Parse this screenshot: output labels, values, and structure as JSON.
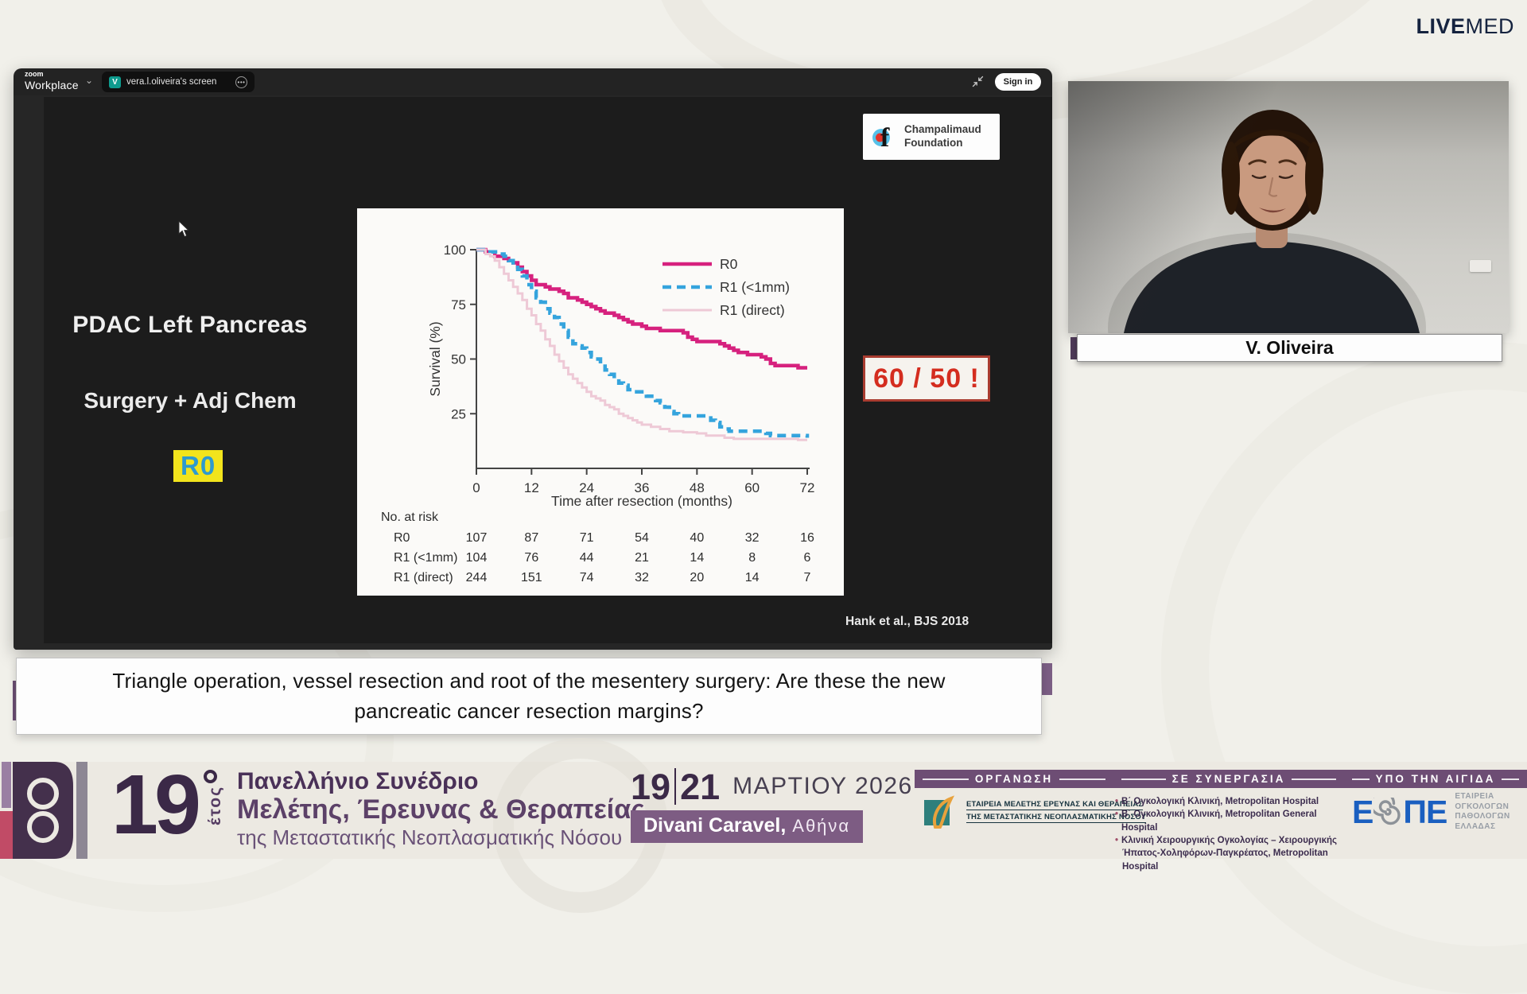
{
  "brand": {
    "live": "LIVE",
    "med": "MED"
  },
  "zoom_window": {
    "app_name_top": "zoom",
    "app_name_bottom": "Workplace",
    "tab_avatar": "V",
    "tab_title": "vera.l.oliveira's screen",
    "sign_in": "Sign in"
  },
  "slide": {
    "heading": "PDAC Left Pancreas",
    "subheading": "Surgery + Adj Chem",
    "highlight_label": "R0",
    "annotation": "60 / 50 !",
    "citation": "Hank et al., BJS 2018",
    "foundation_line1": "Champalimaud",
    "foundation_line2": "Foundation",
    "colors": {
      "highlight_bg": "#f2e41c",
      "highlight_text": "#2e9ace",
      "annotation_text": "#d42d1f"
    }
  },
  "chart_data": {
    "type": "line",
    "subtype": "kaplan-meier-step",
    "title": "",
    "xlabel": "Time after resection (months)",
    "ylabel": "Survival (%)",
    "xlim": [
      0,
      72
    ],
    "ylim": [
      0,
      100
    ],
    "x_ticks": [
      0,
      12,
      24,
      36,
      48,
      60,
      72
    ],
    "y_ticks": [
      100,
      75,
      50,
      25
    ],
    "grid": false,
    "legend_position": "top-right",
    "series": [
      {
        "name": "R0",
        "color": "#d6217e",
        "line": "solid",
        "width": 4.5,
        "points": [
          [
            0,
            100
          ],
          [
            2,
            99
          ],
          [
            4,
            97
          ],
          [
            6,
            96
          ],
          [
            7,
            95
          ],
          [
            8,
            94
          ],
          [
            9,
            92
          ],
          [
            10,
            90
          ],
          [
            11,
            88
          ],
          [
            12,
            86
          ],
          [
            13,
            84
          ],
          [
            15,
            83
          ],
          [
            16,
            82
          ],
          [
            18,
            81
          ],
          [
            19,
            80
          ],
          [
            20,
            78
          ],
          [
            22,
            77
          ],
          [
            23,
            76
          ],
          [
            24,
            75
          ],
          [
            25,
            74
          ],
          [
            26,
            73
          ],
          [
            27,
            72
          ],
          [
            28,
            71
          ],
          [
            30,
            70
          ],
          [
            31,
            69
          ],
          [
            32,
            68
          ],
          [
            33,
            67
          ],
          [
            34,
            66
          ],
          [
            36,
            65
          ],
          [
            37,
            64
          ],
          [
            40,
            63
          ],
          [
            44,
            63
          ],
          [
            45,
            62
          ],
          [
            46,
            60
          ],
          [
            47,
            59
          ],
          [
            48,
            58
          ],
          [
            53,
            57
          ],
          [
            54,
            56
          ],
          [
            55,
            55
          ],
          [
            56,
            54
          ],
          [
            57,
            53
          ],
          [
            59,
            52
          ],
          [
            62,
            51
          ],
          [
            63,
            50
          ],
          [
            64,
            48
          ],
          [
            65,
            47
          ],
          [
            68,
            47
          ],
          [
            70,
            46
          ],
          [
            72,
            46
          ]
        ]
      },
      {
        "name": "R1 (<1mm)",
        "color": "#35a4dd",
        "line": "dashed",
        "width": 4.5,
        "points": [
          [
            0,
            100
          ],
          [
            3,
            99
          ],
          [
            5,
            98
          ],
          [
            6,
            97
          ],
          [
            7,
            95
          ],
          [
            8,
            93
          ],
          [
            9,
            91
          ],
          [
            10,
            88
          ],
          [
            11,
            84
          ],
          [
            12,
            81
          ],
          [
            13,
            78
          ],
          [
            14,
            76
          ],
          [
            15,
            73
          ],
          [
            16,
            71
          ],
          [
            17,
            69
          ],
          [
            18,
            66
          ],
          [
            19,
            63
          ],
          [
            20,
            60
          ],
          [
            21,
            57
          ],
          [
            22,
            56
          ],
          [
            23,
            55
          ],
          [
            24,
            53
          ],
          [
            25,
            51
          ],
          [
            26,
            50
          ],
          [
            27,
            48
          ],
          [
            28,
            45
          ],
          [
            29,
            43
          ],
          [
            30,
            41
          ],
          [
            31,
            39
          ],
          [
            32,
            38
          ],
          [
            33,
            36
          ],
          [
            34,
            35
          ],
          [
            36,
            34
          ],
          [
            37,
            33
          ],
          [
            39,
            31
          ],
          [
            40,
            30
          ],
          [
            41,
            28
          ],
          [
            42,
            26
          ],
          [
            43,
            25
          ],
          [
            44,
            24
          ],
          [
            50,
            24
          ],
          [
            51,
            22
          ],
          [
            52,
            21
          ],
          [
            53,
            19
          ],
          [
            54,
            18
          ],
          [
            55,
            17
          ],
          [
            62,
            17
          ],
          [
            63,
            16
          ],
          [
            64,
            15
          ],
          [
            70,
            15
          ],
          [
            72,
            14
          ]
        ]
      },
      {
        "name": "R1 (direct)",
        "color": "#eec9d6",
        "line": "solid",
        "width": 3,
        "points": [
          [
            0,
            100
          ],
          [
            2,
            98
          ],
          [
            3,
            97
          ],
          [
            4,
            95
          ],
          [
            5,
            92
          ],
          [
            6,
            89
          ],
          [
            7,
            86
          ],
          [
            8,
            83
          ],
          [
            9,
            80
          ],
          [
            10,
            77
          ],
          [
            11,
            73
          ],
          [
            12,
            70
          ],
          [
            13,
            66
          ],
          [
            14,
            63
          ],
          [
            15,
            59
          ],
          [
            16,
            56
          ],
          [
            17,
            52
          ],
          [
            18,
            49
          ],
          [
            19,
            46
          ],
          [
            20,
            43
          ],
          [
            21,
            41
          ],
          [
            22,
            39
          ],
          [
            23,
            37
          ],
          [
            24,
            35
          ],
          [
            25,
            33
          ],
          [
            26,
            32
          ],
          [
            27,
            31
          ],
          [
            28,
            29
          ],
          [
            29,
            28
          ],
          [
            30,
            27
          ],
          [
            31,
            25
          ],
          [
            32,
            24
          ],
          [
            33,
            23
          ],
          [
            34,
            22
          ],
          [
            35,
            21
          ],
          [
            36,
            20
          ],
          [
            38,
            19
          ],
          [
            40,
            18
          ],
          [
            42,
            17
          ],
          [
            45,
            16.5
          ],
          [
            48,
            16
          ],
          [
            50,
            15
          ],
          [
            54,
            14
          ],
          [
            56,
            13.5
          ],
          [
            64,
            13.5
          ],
          [
            70,
            13
          ],
          [
            72,
            13
          ]
        ]
      }
    ],
    "risk_table": {
      "title": "No. at risk",
      "time_points": [
        0,
        12,
        24,
        36,
        48,
        60,
        72
      ],
      "rows": [
        {
          "label": "R0",
          "values": [
            107,
            87,
            71,
            54,
            40,
            32,
            16
          ]
        },
        {
          "label": "R1 (<1mm)",
          "values": [
            104,
            76,
            44,
            21,
            14,
            8,
            6
          ]
        },
        {
          "label": "R1 (direct)",
          "values": [
            244,
            151,
            74,
            32,
            20,
            14,
            7
          ]
        }
      ]
    }
  },
  "video": {
    "speaker_name": "V. Oliveira"
  },
  "talk_title": {
    "line1": "Triangle operation, vessel resection and root of the mesentery surgery: Are these the new",
    "line2": "pancreatic cancer resection margins?"
  },
  "footer": {
    "year": "19",
    "year_word": "έτος",
    "congress_line1": "Πανελλήνιο Συνέδριο",
    "congress_line2": "Μελέτης, Έρευνας & Θεραπείας",
    "congress_line3": "της Μεταστατικής Νεοπλασματικής Νόσου",
    "date_day1": "19",
    "date_day2": "21",
    "date_rest": "ΜΑΡΤΙΟΥ 2026",
    "venue_bold": "Divani Caravel,",
    "venue_light": "Αθήνα",
    "organisation": {
      "header": "ΟΡΓΑΝΩΣΗ",
      "line1": "ΕΤΑΙΡΕΙΑ ΜΕΛΕΤΗΣ ΕΡΕΥΝΑΣ ΚΑΙ ΘΕΡΑΠΕΙΑΣ",
      "line2": "ΤΗΣ ΜΕΤΑΣΤΑΤΙΚΗΣ ΝΕΟΠΛΑΣΜΑΤΙΚΗΣ ΝΟΣΟΥ"
    },
    "partnership": {
      "header": "ΣΕ ΣΥΝΕΡΓΑΣΙΑ",
      "items": [
        {
          "bullet": true,
          "text": "Β΄ Ογκολογική Κλινική, Metropolitan Hospital"
        },
        {
          "bullet": true,
          "text": "Β΄ Ογκολογική Κλινική, Metropolitan General Hospital"
        },
        {
          "bullet": true,
          "text": "Κλινική Χειρουργικής Ογκολογίας – Χειρουργικής"
        },
        {
          "bullet": false,
          "text": "Ήπατος-Χοληφόρων-Παγκρέατος, Metropolitan Hospital"
        }
      ]
    },
    "auspices": {
      "header": "ΥΠΟ ΤΗΝ ΑΙΓΙΔΑ",
      "logo_letters": [
        "Ε",
        "Π",
        "Ε"
      ],
      "org_lines": [
        "ΕΤΑΙΡΕΙΑ",
        "ΟΓΚΟΛΟΓΩΝ",
        "ΠΑΘΟΛΟΓΩΝ",
        "ΕΛΛΑΔΑΣ"
      ]
    }
  }
}
